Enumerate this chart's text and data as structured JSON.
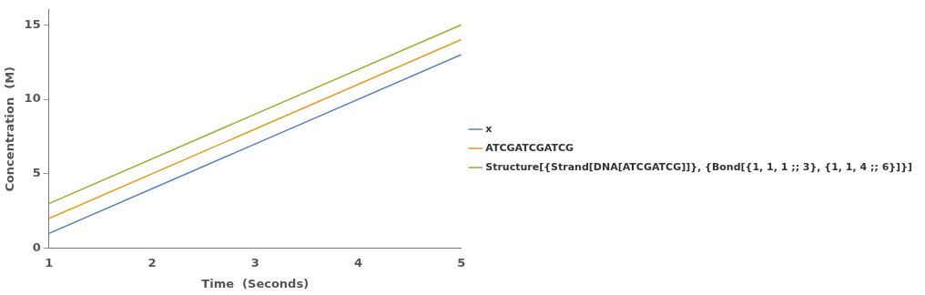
{
  "chart_data": {
    "type": "line",
    "xlabel": "Time  (Seconds)",
    "ylabel": "Concentration  (M)",
    "x": [
      1,
      5
    ],
    "xlim": [
      1,
      5
    ],
    "xticks": [
      1,
      2,
      3,
      4,
      5
    ],
    "ylim": [
      0,
      16
    ],
    "yticks": [
      0,
      5,
      10,
      15
    ],
    "grid": false,
    "legend": "right",
    "marker": "none",
    "line_style": "solid",
    "series": [
      {
        "name": "x",
        "color": "#5e81b5",
        "values": [
          1,
          13
        ]
      },
      {
        "name": "ATCGATCGATCG",
        "color": "#e19c24",
        "values": [
          2,
          14
        ]
      },
      {
        "name": "Structure[{Strand[DNA[ATCGATCG]]}, {Bond[{1, 1, 1 ;; 3}, {1, 1, 4 ;; 6}]}]",
        "color": "#8fb032",
        "values": [
          3,
          15
        ]
      }
    ]
  }
}
